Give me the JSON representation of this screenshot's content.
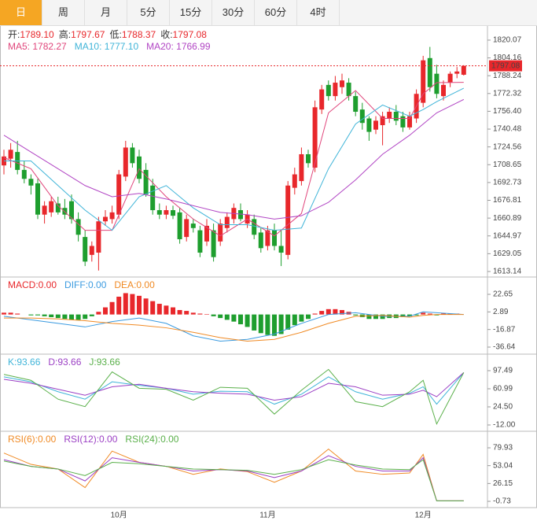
{
  "tabs": [
    "日",
    "周",
    "月",
    "5分",
    "15分",
    "30分",
    "60分",
    "4时"
  ],
  "active_tab": 0,
  "chart_data": [
    {
      "type": "candlestick",
      "categories": [
        null,
        null,
        null,
        null,
        null,
        null,
        null,
        null,
        null,
        null,
        null,
        null,
        null,
        null,
        null,
        null,
        null,
        "10月",
        null,
        null,
        null,
        null,
        null,
        null,
        null,
        null,
        null,
        null,
        null,
        null,
        null,
        null,
        null,
        null,
        null,
        null,
        null,
        null,
        null,
        "11月",
        null,
        null,
        null,
        null,
        null,
        null,
        null,
        null,
        null,
        null,
        null,
        null,
        null,
        null,
        null,
        null,
        null,
        null,
        null,
        null,
        null,
        null,
        "12月",
        null,
        null,
        null,
        null,
        null,
        null
      ],
      "open": [
        1708,
        1714,
        1720,
        1704,
        1696,
        1692,
        1664,
        1666,
        1674,
        1670,
        1676,
        1660,
        1644,
        1628,
        1630,
        1658,
        1660,
        1664,
        1698,
        1724,
        1716,
        1704,
        1690,
        1668,
        1664,
        1668,
        1666,
        1644,
        1656,
        1650,
        1640,
        1650,
        1640,
        1652,
        1660,
        1668,
        1656,
        1660,
        1648,
        1636,
        1650,
        1636,
        1628,
        1688,
        1694,
        1718,
        1706,
        1758,
        1780,
        1770,
        1778,
        1782,
        1770,
        1758,
        1750,
        1740,
        1744,
        1750,
        1756,
        1752,
        1742,
        1750,
        1764,
        1804,
        1790,
        1770,
        1782,
        1790,
        1789.1
      ],
      "high": [
        1722,
        1728,
        1730,
        1712,
        1700,
        1696,
        1676,
        1680,
        1680,
        1678,
        1682,
        1666,
        1650,
        1640,
        1662,
        1668,
        1672,
        1704,
        1730,
        1728,
        1722,
        1710,
        1696,
        1674,
        1672,
        1672,
        1670,
        1664,
        1660,
        1654,
        1660,
        1656,
        1660,
        1666,
        1674,
        1674,
        1668,
        1664,
        1652,
        1654,
        1656,
        1650,
        1694,
        1706,
        1724,
        1722,
        1766,
        1780,
        1784,
        1788,
        1790,
        1786,
        1774,
        1764,
        1752,
        1752,
        1756,
        1760,
        1762,
        1756,
        1756,
        1776,
        1806,
        1814,
        1798,
        1784,
        1792,
        1796,
        1797.67
      ],
      "low": [
        1700,
        1706,
        1700,
        1692,
        1682,
        1660,
        1656,
        1662,
        1664,
        1660,
        1656,
        1640,
        1618,
        1622,
        1614,
        1654,
        1656,
        1660,
        1694,
        1706,
        1692,
        1680,
        1664,
        1660,
        1660,
        1660,
        1638,
        1640,
        1648,
        1626,
        1636,
        1622,
        1636,
        1648,
        1656,
        1658,
        1652,
        1642,
        1630,
        1632,
        1632,
        1618,
        1624,
        1682,
        1690,
        1706,
        1702,
        1754,
        1766,
        1766,
        1772,
        1766,
        1752,
        1740,
        1730,
        1736,
        1726,
        1746,
        1744,
        1738,
        1740,
        1746,
        1760,
        1774,
        1768,
        1766,
        1778,
        1786,
        1788.37
      ],
      "close": [
        1716,
        1722,
        1704,
        1696,
        1690,
        1664,
        1672,
        1676,
        1666,
        1664,
        1660,
        1646,
        1622,
        1636,
        1658,
        1662,
        1666,
        1700,
        1724,
        1710,
        1696,
        1682,
        1668,
        1664,
        1668,
        1663,
        1642,
        1660,
        1652,
        1630,
        1654,
        1626,
        1656,
        1662,
        1670,
        1660,
        1664,
        1646,
        1634,
        1650,
        1636,
        1630,
        1690,
        1700,
        1718,
        1710,
        1760,
        1776,
        1770,
        1782,
        1784,
        1770,
        1756,
        1746,
        1738,
        1748,
        1752,
        1756,
        1748,
        1742,
        1752,
        1772,
        1802,
        1778,
        1772,
        1780,
        1790,
        1792,
        1797.08
      ],
      "up_color": "#e8272b",
      "down_color": "#1e9e2e",
      "info": [
        {
          "label": "开:",
          "value": "1789.10"
        },
        {
          "label": "高:",
          "value": "1797.67"
        },
        {
          "label": "低:",
          "value": "1788.37"
        },
        {
          "label": "收:",
          "value": "1797.08"
        }
      ],
      "info_color": "#e8272b",
      "x": [
        0,
        4,
        8,
        12,
        16,
        20,
        24,
        28,
        32,
        36,
        40,
        44,
        48,
        52,
        56,
        60,
        62,
        64,
        68
      ],
      "series": [
        {
          "name": "MA5: 1782.27",
          "color": "#e0457b",
          "values": [
            1715,
            1705,
            1672,
            1650,
            1650,
            1705,
            1680,
            1660,
            1645,
            1660,
            1645,
            1665,
            1755,
            1775,
            1750,
            1750,
            1772,
            1782,
            1782.27
          ]
        },
        {
          "name": "MA10: 1777.10",
          "color": "#3fb4d8",
          "values": [
            1712,
            1712,
            1690,
            1668,
            1650,
            1680,
            1690,
            1670,
            1655,
            1655,
            1650,
            1652,
            1705,
            1745,
            1762,
            1752,
            1758,
            1765,
            1777.1
          ]
        },
        {
          "name": "MA20: 1766.99",
          "color": "#b145c4",
          "values": [
            1735,
            1720,
            1705,
            1690,
            1680,
            1683,
            1678,
            1672,
            1666,
            1664,
            1660,
            1663,
            1675,
            1695,
            1718,
            1735,
            1745,
            1755,
            1766.99
          ]
        }
      ],
      "last_price": {
        "value": 1797.08,
        "label": "1797.08"
      },
      "last_price_color": "#e8272b",
      "ylim": [
        1608.2,
        1830.6
      ],
      "yticks": [
        1613.14,
        1629.05,
        1644.97,
        1660.89,
        1676.81,
        1692.73,
        1708.65,
        1724.56,
        {
          "value": 1740.48,
          "label": "1740.48"
        },
        {
          "value": 1756.4,
          "label": "1756.40"
        },
        1772.32,
        1788.24,
        1804.16,
        1820.07
      ]
    },
    {
      "type": "macd",
      "histogram": {
        "name": "MACD:0.00",
        "color": "#e8272b",
        "values": [
          2,
          2,
          1,
          0,
          -1,
          -1,
          -2,
          -3,
          -4,
          -5,
          -6,
          -6,
          -5,
          -2,
          3,
          8,
          14,
          20,
          24,
          23,
          21,
          18,
          15,
          12,
          10,
          8,
          5,
          4,
          2,
          1,
          0.5,
          -2,
          -4,
          -6,
          -8,
          -11,
          -14,
          -18,
          -21,
          -23,
          -24,
          -22,
          -17,
          -12,
          -8,
          -5,
          1,
          4,
          6,
          6,
          5,
          3,
          -1,
          -3,
          -5,
          -5,
          -5,
          -4,
          -4,
          -3,
          -2,
          -1,
          2,
          1,
          -1,
          1,
          1,
          1,
          0
        ]
      },
      "up_color": "#e8272b",
      "down_color": "#1e9e2e",
      "x": [
        0,
        4,
        8,
        12,
        16,
        20,
        24,
        28,
        32,
        36,
        40,
        44,
        48,
        52,
        56,
        60,
        62,
        64,
        68
      ],
      "series": [
        {
          "name": "DIFF:0.00",
          "color": "#3b9be0",
          "values": [
            -2,
            -6,
            -10,
            -14,
            -8,
            -4,
            -10,
            -24,
            -30,
            -28,
            -22,
            -10,
            0,
            2,
            -2,
            -2,
            3,
            2,
            0
          ]
        },
        {
          "name": "DEA:0.00",
          "color": "#f08a24",
          "values": [
            -4,
            -4,
            -5,
            -7,
            -10,
            -12,
            -15,
            -20,
            -26,
            -30,
            -28,
            -20,
            -10,
            -2,
            -1,
            -3,
            -1,
            0,
            0
          ]
        }
      ],
      "ylim": [
        -43.7,
        40.35
      ],
      "yticks": [
        -36.64,
        -16.87,
        2.89,
        22.65
      ]
    },
    {
      "type": "line",
      "x": [
        0,
        4,
        8,
        12,
        16,
        20,
        24,
        28,
        32,
        36,
        40,
        44,
        48,
        52,
        56,
        60,
        62,
        64,
        68
      ],
      "series": [
        {
          "name": "K:93.66",
          "color": "#3fb4d8",
          "values": [
            85,
            75,
            55,
            40,
            75,
            68,
            62,
            50,
            56,
            55,
            30,
            50,
            85,
            55,
            40,
            52,
            65,
            30,
            93.66
          ]
        },
        {
          "name": "D:93.66",
          "color": "#9b3fc4",
          "values": [
            80,
            72,
            60,
            48,
            65,
            70,
            62,
            55,
            52,
            50,
            38,
            45,
            72,
            65,
            48,
            50,
            58,
            45,
            93.66
          ]
        },
        {
          "name": "J:93.66",
          "color": "#5ab04a",
          "values": [
            90,
            78,
            40,
            25,
            95,
            62,
            60,
            38,
            64,
            62,
            10,
            58,
            100,
            35,
            25,
            55,
            78,
            -10,
            93.66
          ]
        }
      ],
      "ylim": [
        -21.5,
        127.6
      ],
      "yticks": [
        {
          "value": -12,
          "label": "-12.00"
        },
        {
          "value": 24.5,
          "label": "24.50"
        },
        60.99,
        97.49
      ]
    },
    {
      "type": "line",
      "x": [
        0,
        4,
        8,
        12,
        16,
        20,
        24,
        28,
        32,
        36,
        40,
        44,
        48,
        52,
        56,
        60,
        62,
        64,
        68
      ],
      "series": [
        {
          "name": "RSI(6):0.00",
          "color": "#f08a24",
          "values": [
            72,
            55,
            48,
            20,
            75,
            58,
            52,
            40,
            48,
            44,
            28,
            45,
            78,
            45,
            40,
            42,
            70,
            0,
            0
          ]
        },
        {
          "name": "RSI(12):0.00",
          "color": "#9b3fc4",
          "values": [
            62,
            52,
            48,
            30,
            65,
            58,
            52,
            45,
            47,
            45,
            35,
            45,
            68,
            52,
            45,
            45,
            65,
            0,
            0
          ]
        },
        {
          "name": "RSI(24):0.00",
          "color": "#5ab04a",
          "values": [
            60,
            52,
            48,
            38,
            58,
            56,
            52,
            48,
            47,
            46,
            40,
            47,
            62,
            54,
            48,
            47,
            62,
            0,
            0
          ]
        }
      ],
      "ylim": [
        -10.2,
        102.5
      ],
      "yticks": [
        -0.73,
        26.15,
        53.04,
        79.93
      ]
    }
  ]
}
